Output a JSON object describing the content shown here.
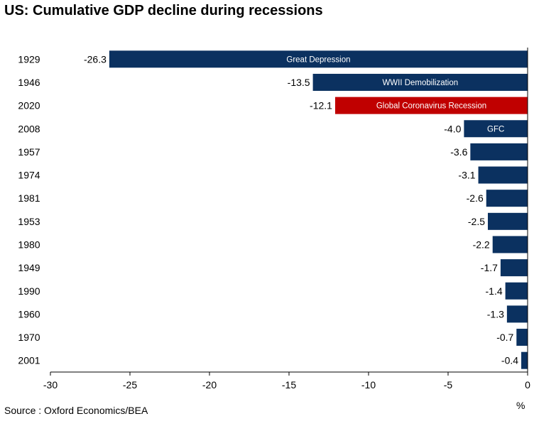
{
  "chart_data": {
    "type": "bar",
    "orientation": "horizontal",
    "title": "US: Cumulative GDP decline during recessions",
    "xlabel": "%",
    "ylabel": "",
    "xlim": [
      -30,
      0
    ],
    "x_ticks": [
      -30,
      -25,
      -20,
      -15,
      -10,
      -5,
      0
    ],
    "grid": false,
    "legend": "none",
    "categories": [
      "1929",
      "1946",
      "2020",
      "2008",
      "1957",
      "1974",
      "1981",
      "1953",
      "1980",
      "1949",
      "1990",
      "1960",
      "1970",
      "2001"
    ],
    "values": [
      -26.3,
      -13.5,
      -12.1,
      -4.0,
      -3.6,
      -3.1,
      -2.6,
      -2.5,
      -2.2,
      -1.7,
      -1.4,
      -1.3,
      -0.7,
      -0.4
    ],
    "value_labels": [
      "-26.3",
      "-13.5",
      "-12.1",
      "-4.0",
      "-3.6",
      "-3.1",
      "-2.6",
      "-2.5",
      "-2.2",
      "-1.7",
      "-1.4",
      "-1.3",
      "-0.7",
      "-0.4"
    ],
    "annotations": [
      {
        "category": "1929",
        "text": "Great Depression"
      },
      {
        "category": "1946",
        "text": "WWII Demobilization"
      },
      {
        "category": "2020",
        "text": "Global Coronavirus Recession"
      },
      {
        "category": "2008",
        "text": "GFC"
      }
    ],
    "highlight_category": "2020",
    "colors": {
      "bar": "#0b3160",
      "highlight": "#c00000",
      "annotation_text": "#ffffff",
      "axis": "#000000"
    }
  },
  "source": "Source : Oxford Economics/BEA"
}
